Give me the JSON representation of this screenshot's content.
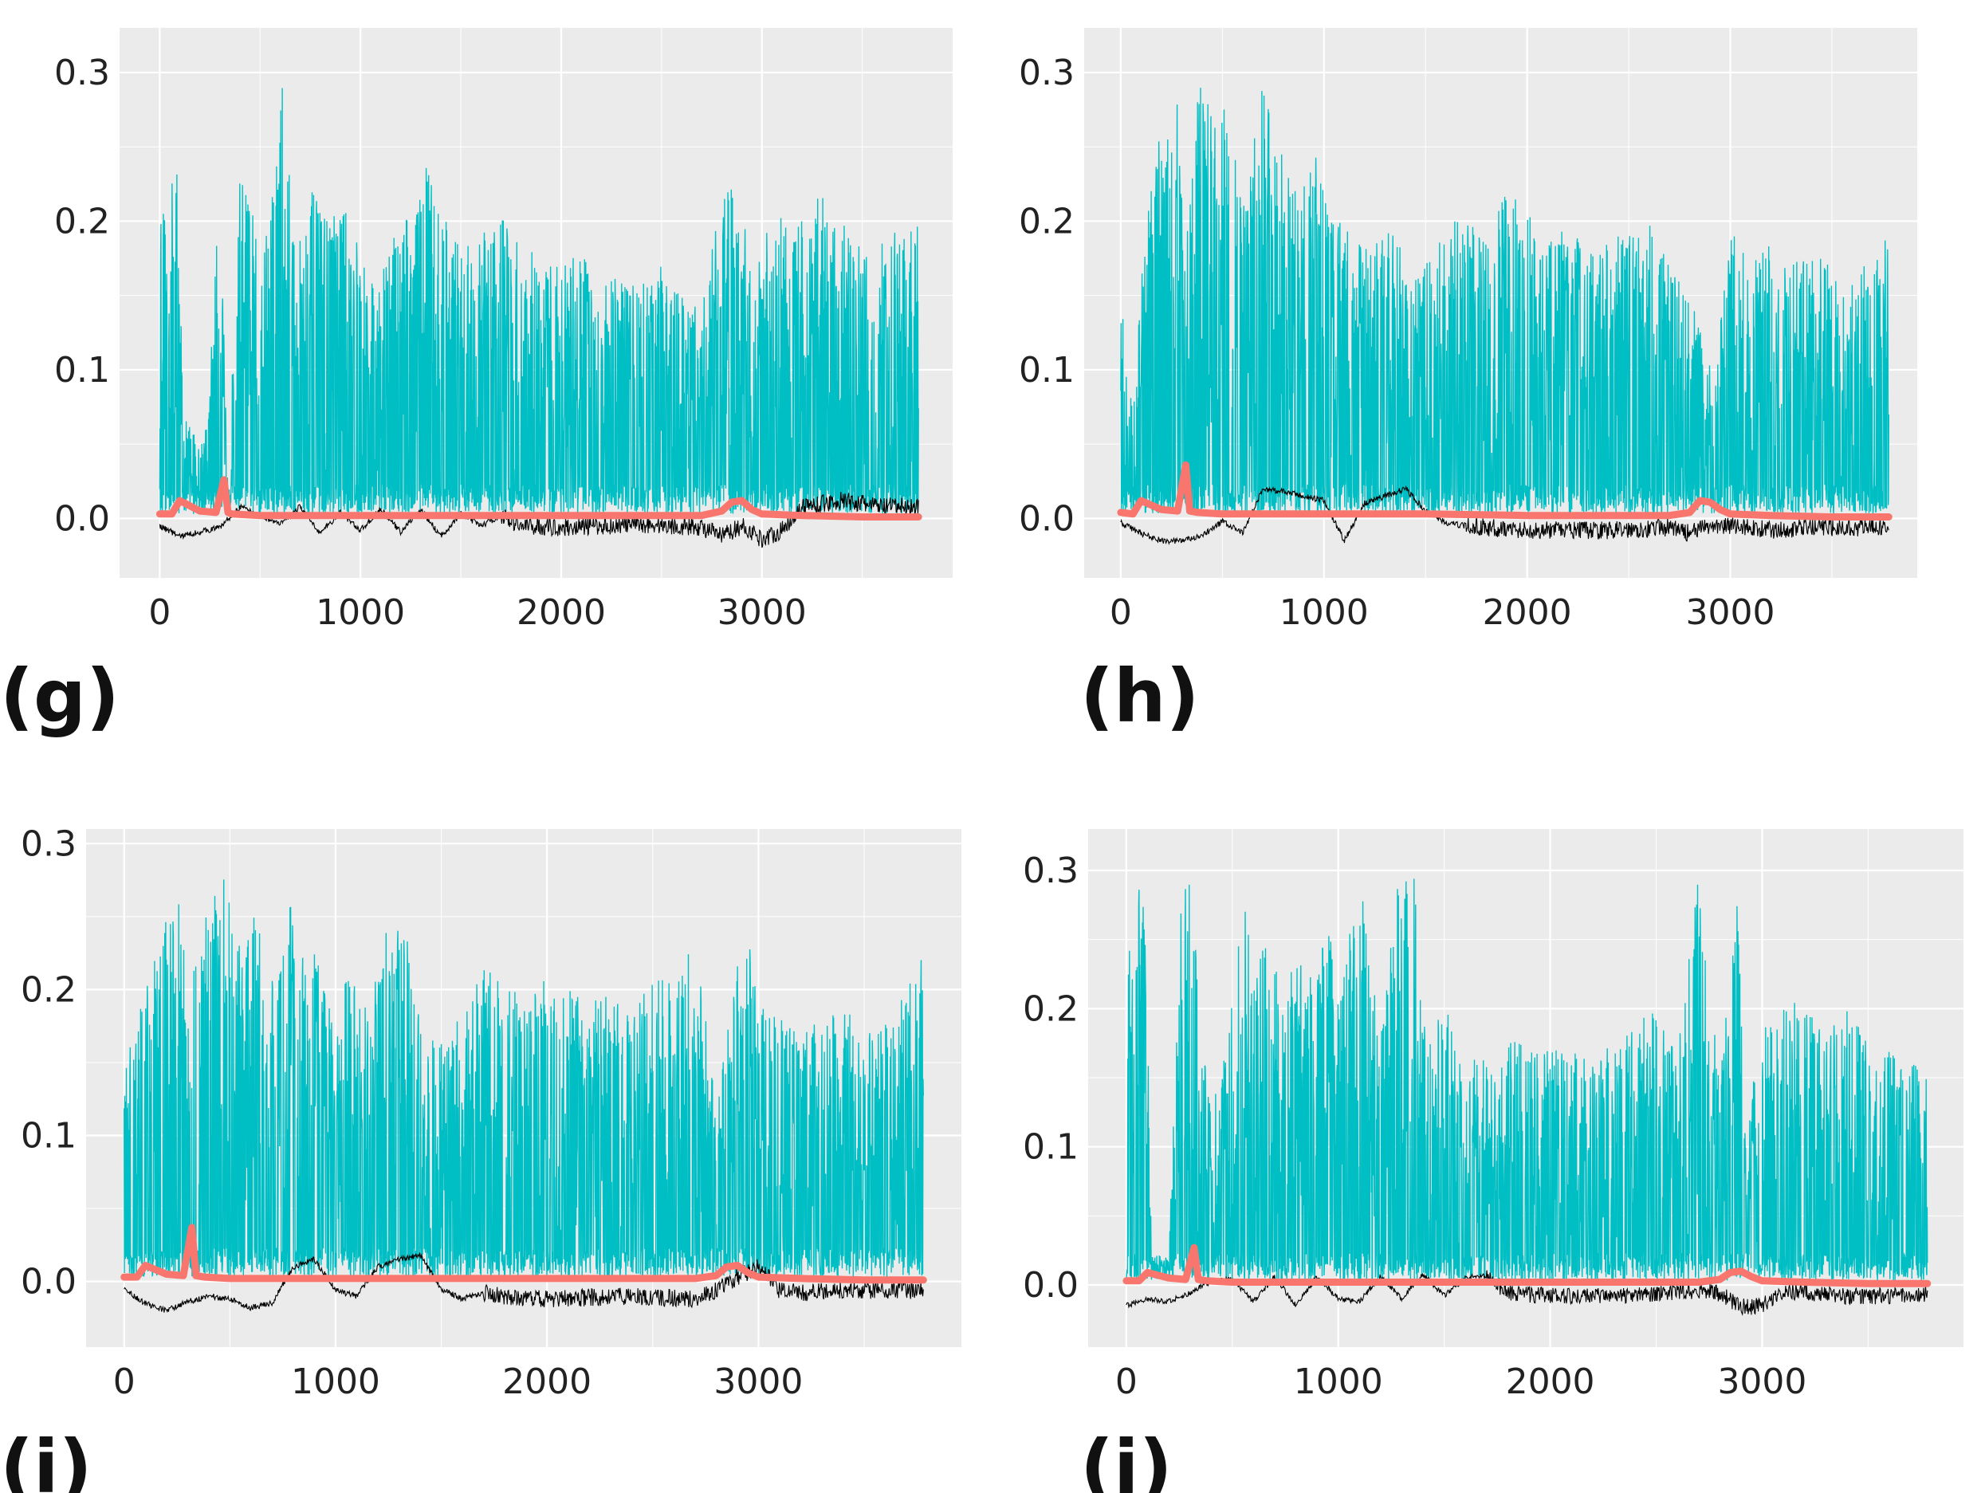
{
  "colors": {
    "panel_background": "#ebebeb",
    "grid": "#ffffff",
    "series_cyan": "#00bfc4",
    "series_red": "#f8766d",
    "series_black": "#000000"
  },
  "chart_data": [
    {
      "type": "line",
      "label": "(g)",
      "x_ticks": [
        "0",
        "1000",
        "2000",
        "3000"
      ],
      "y_ticks": [
        "0.0",
        "0.1",
        "0.2",
        "0.3"
      ],
      "xlim": [
        -200,
        3950
      ],
      "ylim": [
        -0.04,
        0.33
      ],
      "series": [
        {
          "name": "cyan",
          "color": "#00bfc4",
          "x": [
            0,
            40,
            80,
            120,
            180,
            240,
            300,
            340,
            400,
            480,
            560,
            600,
            680,
            760,
            840,
            920,
            1000,
            1080,
            1160,
            1240,
            1320,
            1400,
            1500,
            1600,
            1700,
            1800,
            1900,
            2000,
            2100,
            2200,
            2300,
            2400,
            2500,
            2600,
            2700,
            2800,
            2850,
            2900,
            2980,
            3050,
            3120,
            3200,
            3300,
            3400,
            3500,
            3600,
            3700,
            3780
          ],
          "peaks": [
            0.23,
            0.19,
            0.26,
            0.07,
            0.06,
            0.06,
            0.25,
            0.02,
            0.24,
            0.2,
            0.22,
            0.31,
            0.18,
            0.22,
            0.2,
            0.21,
            0.19,
            0.15,
            0.19,
            0.21,
            0.24,
            0.21,
            0.18,
            0.19,
            0.21,
            0.18,
            0.18,
            0.17,
            0.18,
            0.17,
            0.16,
            0.16,
            0.17,
            0.15,
            0.14,
            0.22,
            0.23,
            0.21,
            0.17,
            0.21,
            0.2,
            0.21,
            0.22,
            0.2,
            0.18,
            0.19,
            0.2,
            0.2
          ]
        },
        {
          "name": "red",
          "color": "#f8766d",
          "x": [
            0,
            60,
            100,
            200,
            280,
            320,
            340,
            360,
            500,
            1000,
            1500,
            2000,
            2700,
            2800,
            2850,
            2900,
            2950,
            3000,
            3200,
            3500,
            3780
          ],
          "y": [
            0.003,
            0.003,
            0.012,
            0.005,
            0.004,
            0.026,
            0.004,
            0.003,
            0.002,
            0.002,
            0.002,
            0.002,
            0.002,
            0.005,
            0.011,
            0.012,
            0.006,
            0.003,
            0.002,
            0.001,
            0.001
          ]
        },
        {
          "name": "black",
          "color": "#000000",
          "x": [
            0,
            100,
            200,
            300,
            400,
            500,
            600,
            700,
            800,
            900,
            1000,
            1100,
            1200,
            1300,
            1400,
            1500,
            1600,
            1700,
            1800,
            2000,
            2400,
            2700,
            2800,
            2900,
            3000,
            3100,
            3200,
            3400,
            3600,
            3780
          ],
          "y": [
            -0.005,
            -0.012,
            -0.009,
            -0.006,
            0.008,
            0.002,
            -0.004,
            0.008,
            -0.01,
            0.004,
            -0.008,
            0.006,
            -0.009,
            0.006,
            -0.012,
            0.003,
            -0.005,
            0.002,
            -0.005,
            -0.006,
            -0.004,
            -0.006,
            -0.012,
            -0.005,
            -0.014,
            -0.008,
            0.008,
            0.012,
            0.008,
            0.008
          ]
        }
      ]
    },
    {
      "type": "line",
      "label": "(h)",
      "x_ticks": [
        "0",
        "1000",
        "2000",
        "3000"
      ],
      "y_ticks": [
        "0.0",
        "0.1",
        "0.2",
        "0.3"
      ],
      "xlim": [
        -180,
        3920
      ],
      "ylim": [
        -0.04,
        0.33
      ],
      "series": [
        {
          "name": "cyan",
          "color": "#00bfc4",
          "x": [
            0,
            40,
            80,
            120,
            160,
            200,
            280,
            320,
            380,
            440,
            500,
            560,
            620,
            700,
            760,
            820,
            880,
            960,
            1040,
            1120,
            1200,
            1280,
            1360,
            1420,
            1500,
            1600,
            1700,
            1800,
            1900,
            2000,
            2100,
            2200,
            2300,
            2400,
            2500,
            2600,
            2700,
            2800,
            2860,
            2920,
            3000,
            3100,
            3200,
            3300,
            3400,
            3500,
            3600,
            3700,
            3780
          ],
          "peaks": [
            0.16,
            0.07,
            0.12,
            0.2,
            0.24,
            0.26,
            0.28,
            0.18,
            0.31,
            0.28,
            0.28,
            0.25,
            0.22,
            0.3,
            0.26,
            0.24,
            0.22,
            0.25,
            0.2,
            0.2,
            0.18,
            0.2,
            0.19,
            0.16,
            0.17,
            0.2,
            0.2,
            0.19,
            0.22,
            0.21,
            0.19,
            0.2,
            0.18,
            0.19,
            0.19,
            0.2,
            0.17,
            0.15,
            0.13,
            0.09,
            0.2,
            0.17,
            0.19,
            0.17,
            0.18,
            0.17,
            0.17,
            0.17,
            0.2
          ]
        },
        {
          "name": "red",
          "color": "#f8766d",
          "x": [
            0,
            60,
            100,
            200,
            280,
            320,
            340,
            380,
            500,
            1000,
            1500,
            2000,
            2700,
            2800,
            2850,
            2900,
            2950,
            3000,
            3200,
            3500,
            3780
          ],
          "y": [
            0.004,
            0.003,
            0.012,
            0.006,
            0.005,
            0.036,
            0.005,
            0.004,
            0.003,
            0.003,
            0.003,
            0.002,
            0.002,
            0.004,
            0.012,
            0.011,
            0.006,
            0.003,
            0.002,
            0.001,
            0.001
          ]
        },
        {
          "name": "black",
          "color": "#000000",
          "x": [
            0,
            100,
            200,
            300,
            400,
            500,
            600,
            700,
            800,
            900,
            1000,
            1100,
            1200,
            1300,
            1400,
            1500,
            1600,
            1700,
            1800,
            2000,
            2400,
            2700,
            2800,
            2900,
            3000,
            3100,
            3200,
            3400,
            3600,
            3780
          ],
          "y": [
            -0.003,
            -0.01,
            -0.015,
            -0.015,
            -0.012,
            -0.002,
            -0.01,
            0.02,
            0.018,
            0.015,
            0.012,
            -0.015,
            0.01,
            0.015,
            0.02,
            0.005,
            -0.003,
            -0.005,
            -0.006,
            -0.008,
            -0.008,
            -0.006,
            -0.01,
            -0.005,
            -0.005,
            -0.006,
            -0.008,
            -0.006,
            -0.006,
            -0.006
          ]
        }
      ]
    },
    {
      "type": "line",
      "label": "(i)",
      "x_ticks": [
        "0",
        "1000",
        "2000",
        "3000"
      ],
      "y_ticks": [
        "0.0",
        "0.1",
        "0.2",
        "0.3"
      ],
      "xlim": [
        -180,
        3960
      ],
      "ylim": [
        -0.045,
        0.31
      ],
      "series": [
        {
          "name": "cyan",
          "color": "#00bfc4",
          "x": [
            0,
            40,
            80,
            120,
            160,
            200,
            260,
            300,
            360,
            420,
            480,
            540,
            600,
            660,
            720,
            800,
            860,
            940,
            1000,
            1080,
            1160,
            1240,
            1320,
            1400,
            1480,
            1560,
            1640,
            1700,
            1800,
            1900,
            2000,
            2100,
            2200,
            2300,
            2400,
            2500,
            2600,
            2700,
            2800,
            2900,
            2960,
            3000,
            3100,
            3200,
            3300,
            3400,
            3500,
            3600,
            3700,
            3780
          ],
          "peaks": [
            0.19,
            0.15,
            0.21,
            0.22,
            0.23,
            0.25,
            0.27,
            0.2,
            0.23,
            0.28,
            0.29,
            0.23,
            0.26,
            0.23,
            0.2,
            0.27,
            0.25,
            0.21,
            0.17,
            0.23,
            0.19,
            0.24,
            0.25,
            0.18,
            0.16,
            0.18,
            0.2,
            0.22,
            0.2,
            0.2,
            0.21,
            0.2,
            0.19,
            0.2,
            0.18,
            0.22,
            0.2,
            0.24,
            0.12,
            0.22,
            0.23,
            0.19,
            0.18,
            0.17,
            0.18,
            0.19,
            0.17,
            0.18,
            0.2,
            0.23
          ]
        },
        {
          "name": "red",
          "color": "#f8766d",
          "x": [
            0,
            60,
            100,
            200,
            280,
            320,
            340,
            380,
            500,
            1000,
            1500,
            2000,
            2700,
            2800,
            2850,
            2900,
            2950,
            3000,
            3200,
            3500,
            3780
          ],
          "y": [
            0.003,
            0.003,
            0.011,
            0.005,
            0.004,
            0.037,
            0.004,
            0.003,
            0.002,
            0.002,
            0.002,
            0.002,
            0.002,
            0.004,
            0.01,
            0.011,
            0.006,
            0.003,
            0.002,
            0.001,
            0.001
          ]
        },
        {
          "name": "black",
          "color": "#000000",
          "x": [
            0,
            100,
            200,
            300,
            400,
            500,
            600,
            700,
            800,
            900,
            1000,
            1100,
            1200,
            1300,
            1400,
            1500,
            1600,
            1700,
            1800,
            2000,
            2400,
            2700,
            2800,
            2900,
            3000,
            3100,
            3200,
            3400,
            3600,
            3780
          ],
          "y": [
            -0.005,
            -0.015,
            -0.02,
            -0.014,
            -0.01,
            -0.012,
            -0.018,
            -0.015,
            0.01,
            0.015,
            -0.006,
            -0.01,
            0.01,
            0.015,
            0.018,
            -0.005,
            -0.012,
            -0.008,
            -0.01,
            -0.012,
            -0.01,
            -0.012,
            -0.006,
            0.003,
            0.01,
            -0.006,
            -0.008,
            -0.006,
            -0.006,
            -0.006
          ]
        }
      ]
    },
    {
      "type": "line",
      "label": "(j)",
      "x_ticks": [
        "0",
        "1000",
        "2000",
        "3000"
      ],
      "y_ticks": [
        "0.0",
        "0.1",
        "0.2",
        "0.3"
      ],
      "xlim": [
        -180,
        3950
      ],
      "ylim": [
        -0.045,
        0.33
      ],
      "series": [
        {
          "name": "cyan",
          "color": "#00bfc4",
          "x": [
            0,
            30,
            60,
            80,
            100,
            120,
            200,
            260,
            300,
            400,
            480,
            560,
            600,
            660,
            720,
            800,
            880,
            940,
            1000,
            1060,
            1120,
            1200,
            1280,
            1360,
            1420,
            1500,
            1580,
            1660,
            1740,
            1820,
            1900,
            2000,
            2100,
            2200,
            2300,
            2400,
            2500,
            2600,
            2700,
            2780,
            2840,
            2880,
            2920,
            3000,
            3100,
            3200,
            3300,
            3400,
            3500,
            3600,
            3700,
            3780
          ],
          "peaks": [
            0.26,
            0.23,
            0.3,
            0.31,
            0.21,
            0.02,
            0.02,
            0.29,
            0.29,
            0.12,
            0.19,
            0.28,
            0.24,
            0.26,
            0.22,
            0.24,
            0.22,
            0.27,
            0.22,
            0.26,
            0.28,
            0.18,
            0.29,
            0.3,
            0.2,
            0.21,
            0.16,
            0.17,
            0.15,
            0.18,
            0.17,
            0.17,
            0.17,
            0.16,
            0.18,
            0.19,
            0.2,
            0.17,
            0.3,
            0.18,
            0.2,
            0.3,
            0.11,
            0.19,
            0.2,
            0.21,
            0.19,
            0.2,
            0.18,
            0.17,
            0.16,
            0.16
          ]
        },
        {
          "name": "red",
          "color": "#f8766d",
          "x": [
            0,
            60,
            100,
            200,
            280,
            320,
            340,
            380,
            500,
            1000,
            1500,
            2000,
            2700,
            2800,
            2850,
            2900,
            2950,
            3000,
            3200,
            3500,
            3780
          ],
          "y": [
            0.003,
            0.003,
            0.009,
            0.005,
            0.004,
            0.027,
            0.004,
            0.003,
            0.002,
            0.002,
            0.002,
            0.002,
            0.002,
            0.004,
            0.009,
            0.01,
            0.006,
            0.003,
            0.002,
            0.001,
            0.001
          ]
        },
        {
          "name": "black",
          "color": "#000000",
          "x": [
            0,
            100,
            200,
            300,
            400,
            500,
            600,
            700,
            800,
            900,
            1000,
            1100,
            1200,
            1300,
            1400,
            1500,
            1600,
            1700,
            1800,
            2000,
            2400,
            2700,
            2800,
            2900,
            3000,
            3100,
            3200,
            3400,
            3600,
            3780
          ],
          "y": [
            -0.015,
            -0.01,
            -0.012,
            -0.006,
            0.003,
            0.004,
            -0.012,
            0.006,
            -0.015,
            0.006,
            -0.01,
            -0.012,
            0.006,
            -0.01,
            0.008,
            -0.008,
            0.005,
            0.007,
            -0.006,
            -0.008,
            -0.008,
            -0.004,
            -0.006,
            -0.016,
            -0.015,
            -0.004,
            -0.006,
            -0.008,
            -0.008,
            -0.006
          ]
        }
      ]
    }
  ]
}
